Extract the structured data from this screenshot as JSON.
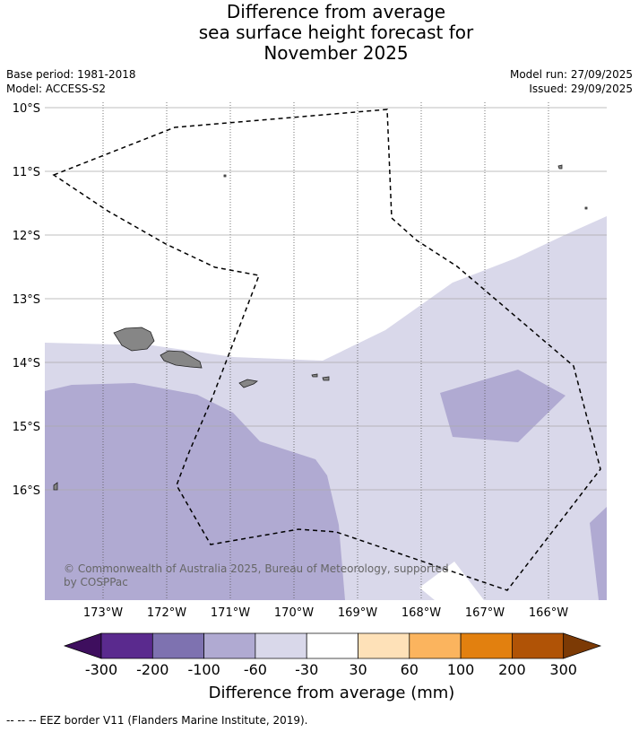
{
  "title": {
    "line1": "Difference from average",
    "line2": "sea surface height forecast for",
    "line3": "November 2025"
  },
  "meta": {
    "base_period": "Base period: 1981-2018",
    "model": "Model: ACCESS-S2",
    "model_run": "Model run: 27/09/2025",
    "issued": "Issued: 29/09/2025"
  },
  "map": {
    "lat_labels": [
      "10°S",
      "11°S",
      "12°S",
      "13°S",
      "14°S",
      "15°S",
      "16°S"
    ],
    "lon_labels": [
      "173°W",
      "172°W",
      "171°W",
      "170°W",
      "169°W",
      "168°W",
      "167°W",
      "166°W"
    ],
    "copyright_line1": "© Commonwealth of Australia 2025, Bureau of Meteorology, supported",
    "copyright_line2": "by COSPPac",
    "colors": {
      "band_minus100_to_minus60": "#b0aad2",
      "band_minus60_to_minus30": "#d9d8ea",
      "band_minus30_to_30": "#ffffff",
      "land": "#868686",
      "eez_border": "#000000"
    }
  },
  "colorbar": {
    "tick_labels": [
      "-300",
      "-200",
      "-100",
      "-60",
      "-30",
      "30",
      "60",
      "100",
      "200",
      "300"
    ],
    "colors": [
      "#3e0e5e",
      "#5a2a8e",
      "#7e72b0",
      "#b0aad2",
      "#d9d8ea",
      "#ffffff",
      "#fee1b8",
      "#fbb45e",
      "#e2800f",
      "#b05306",
      "#7c3a05"
    ],
    "title": "Difference from average (mm)"
  },
  "footnote": "--  --  -- EEZ border V11 (Flanders Marine Institute, 2019)."
}
